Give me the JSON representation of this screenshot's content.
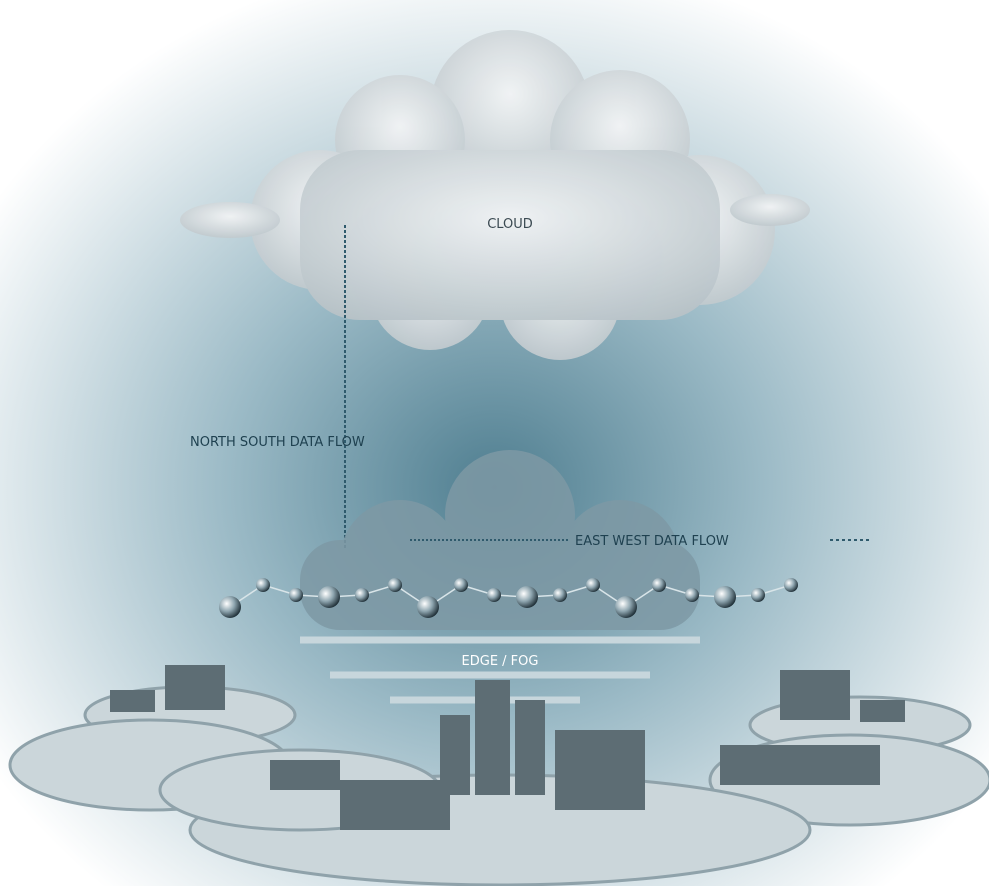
{
  "labels": {
    "cloud": "CLOUD",
    "north_south": "NORTH SOUTH DATA FLOW",
    "east_west": "EAST WEST DATA FLOW",
    "edge_fog": "EDGE / FOG"
  }
}
